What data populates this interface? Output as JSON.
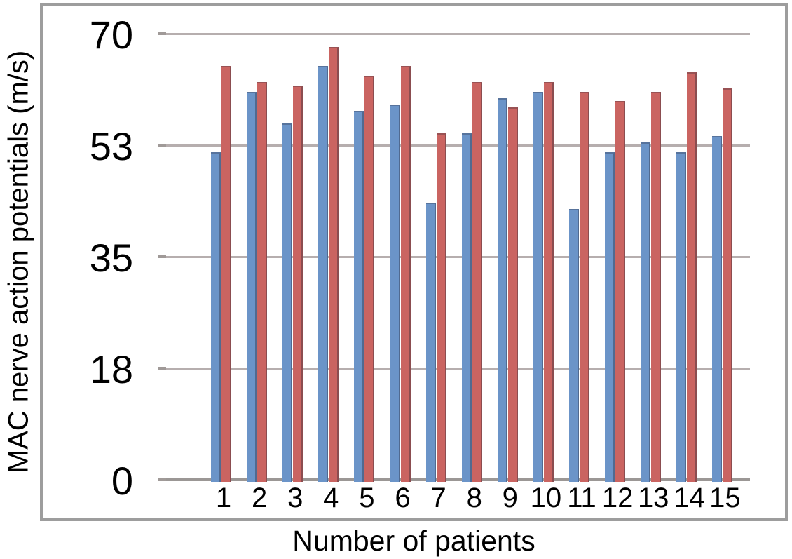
{
  "chart_data": {
    "type": "bar",
    "title": "",
    "xlabel": "Number of patients",
    "ylabel": "MAC nerve action potentials (m/s)",
    "categories": [
      "1",
      "2",
      "3",
      "4",
      "5",
      "6",
      "7",
      "8",
      "9",
      "10",
      "11",
      "12",
      "13",
      "14",
      "15"
    ],
    "yticks": [
      "0",
      "18",
      "35",
      "53",
      "70"
    ],
    "ylim": [
      0,
      70
    ],
    "grid": true,
    "legend": "none",
    "series": [
      {
        "name": "blue-series",
        "color": "#6b94c8",
        "values": [
          51.5,
          61,
          56,
          65,
          58,
          59,
          43.5,
          54.5,
          60,
          61,
          42.5,
          51.5,
          53,
          51.5,
          54
        ]
      },
      {
        "name": "red-series",
        "color": "#ca6461",
        "values": [
          65,
          62.5,
          62,
          68,
          63.5,
          65,
          54.5,
          62.5,
          58.5,
          62.5,
          61,
          59.5,
          61,
          64,
          61.5
        ]
      }
    ]
  },
  "colors": {
    "frame_border": "#9d9d9d",
    "gridline": "#b6aeae",
    "axis_line": "#9b9795",
    "text": "#000000",
    "background": "#ffffff"
  }
}
